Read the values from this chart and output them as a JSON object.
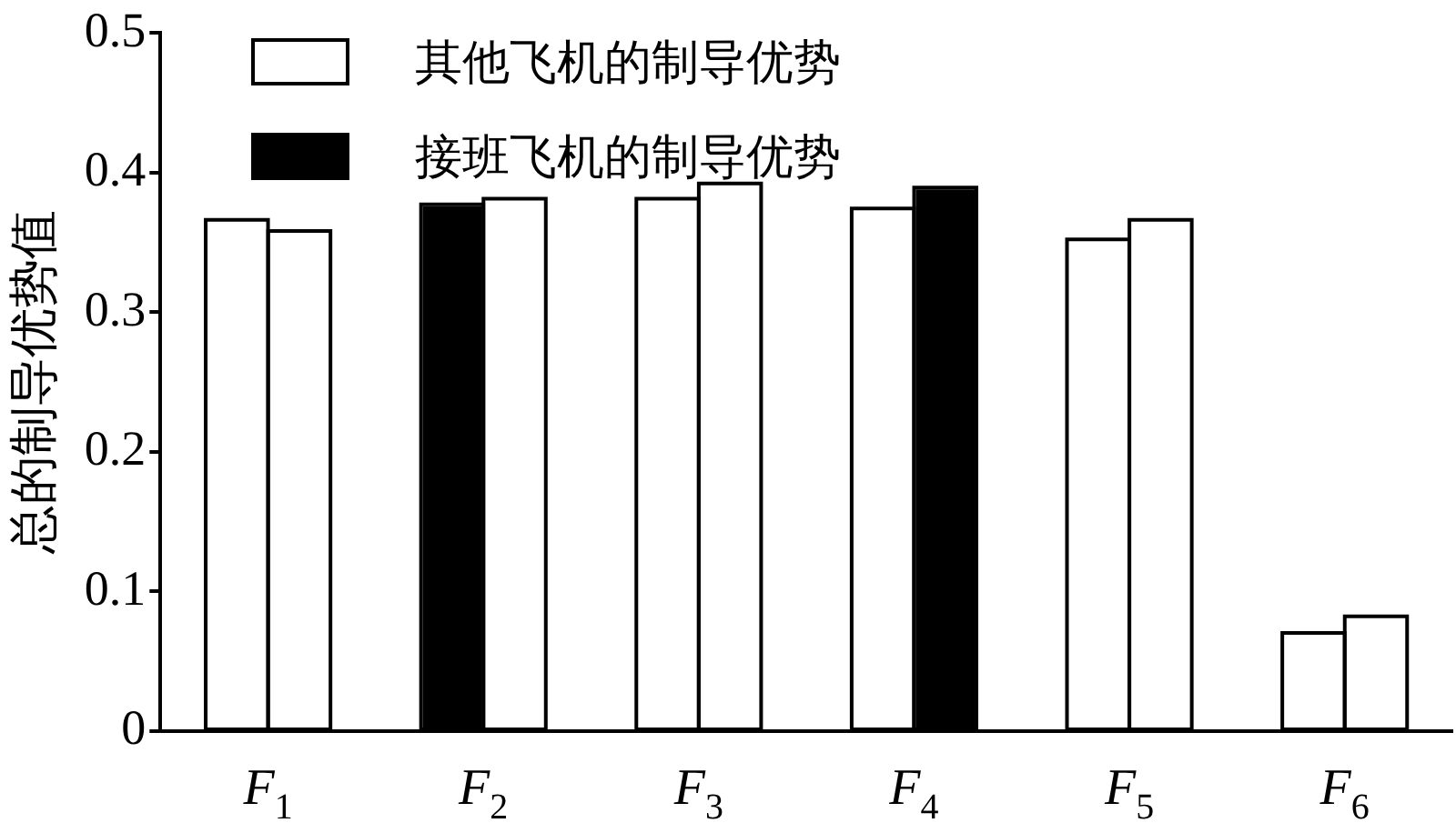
{
  "chart_data": {
    "type": "bar",
    "ylabel": "总的制导优势值",
    "categories": [
      "F$_{1}$",
      "F$_{2}$",
      "F$_{3}$",
      "F$_{4}$",
      "F$_{5}$",
      "F$_{6}$"
    ],
    "series": [
      {
        "name": "其他飞机的制导优势",
        "color": "#ffffff",
        "colors": [
          "#ffffff",
          "#000000",
          "#ffffff",
          "#ffffff",
          "#ffffff",
          "#ffffff"
        ],
        "values": [
          0.365,
          0.376,
          0.38,
          0.373,
          0.351,
          0.069
        ]
      },
      {
        "name": "接班飞机的制导优势",
        "color": "#000000",
        "colors": [
          "#ffffff",
          "#ffffff",
          "#ffffff",
          "#000000",
          "#ffffff",
          "#ffffff"
        ],
        "values": [
          0.357,
          0.38,
          0.391,
          0.388,
          0.365,
          0.081
        ]
      }
    ],
    "ylim": [
      0,
      0.5
    ],
    "yticks": [
      0,
      0.1,
      0.2,
      0.3,
      0.4,
      0.5
    ],
    "grid": false,
    "legend": "top left"
  }
}
